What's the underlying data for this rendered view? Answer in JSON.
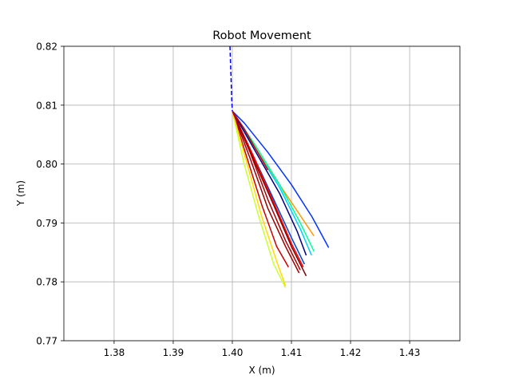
{
  "chart_data": {
    "type": "line",
    "title": "Robot Movement",
    "xlabel": "X (m)",
    "ylabel": "Y (m)",
    "xlim": [
      1.3715,
      1.4385
    ],
    "ylim": [
      0.77,
      0.82
    ],
    "x_ticks": [
      "1.38",
      "1.39",
      "1.40",
      "1.41",
      "1.42",
      "1.43"
    ],
    "x_tick_values": [
      1.38,
      1.39,
      1.4,
      1.41,
      1.42,
      1.43
    ],
    "y_ticks": [
      "0.77",
      "0.78",
      "0.79",
      "0.80",
      "0.81",
      "0.82"
    ],
    "y_tick_values": [
      0.77,
      0.78,
      0.79,
      0.8,
      0.81,
      0.82
    ],
    "grid": true,
    "series": [
      {
        "color": "#0000ff",
        "style": "dashed",
        "x": [
          1.3996,
          1.3997,
          1.3998,
          1.3999,
          1.4
        ],
        "y": [
          0.82,
          0.817,
          0.814,
          0.811,
          0.809
        ]
      },
      {
        "color": "#0033ff",
        "style": "solid",
        "x": [
          1.4,
          1.402,
          1.406,
          1.41,
          1.4135,
          1.4163
        ],
        "y": [
          0.809,
          0.807,
          0.802,
          0.7965,
          0.791,
          0.7858
        ]
      },
      {
        "color": "#ff9900",
        "style": "solid",
        "x": [
          1.4,
          1.403,
          1.407,
          1.411,
          1.4138
        ],
        "y": [
          0.809,
          0.804,
          0.798,
          0.792,
          0.7878
        ]
      },
      {
        "color": "#00ff99",
        "style": "solid",
        "x": [
          1.4,
          1.404,
          1.408,
          1.4115,
          1.4138
        ],
        "y": [
          0.809,
          0.803,
          0.7965,
          0.79,
          0.7852
        ]
      },
      {
        "color": "#00ccff",
        "style": "solid",
        "x": [
          1.4,
          1.404,
          1.408,
          1.4115,
          1.4134
        ],
        "y": [
          0.809,
          0.8025,
          0.796,
          0.789,
          0.7845
        ]
      },
      {
        "color": "#000080",
        "style": "solid",
        "x": [
          1.4,
          1.404,
          1.408,
          1.411,
          1.4125
        ],
        "y": [
          0.809,
          0.802,
          0.795,
          0.7885,
          0.7845
        ]
      },
      {
        "color": "#0044cc",
        "style": "solid",
        "x": [
          1.4,
          1.4035,
          1.407,
          1.41,
          1.4122
        ],
        "y": [
          0.809,
          0.8015,
          0.794,
          0.7875,
          0.783
        ]
      },
      {
        "color": "#ff0000",
        "style": "solid",
        "x": [
          1.4,
          1.4035,
          1.407,
          1.41,
          1.412
        ],
        "y": [
          0.809,
          0.8015,
          0.7935,
          0.7865,
          0.7825
        ]
      },
      {
        "color": "#800000",
        "style": "solid",
        "x": [
          1.4,
          1.4035,
          1.407,
          1.41,
          1.4125
        ],
        "y": [
          0.809,
          0.801,
          0.793,
          0.786,
          0.781
        ]
      },
      {
        "color": "#990000",
        "style": "solid",
        "x": [
          1.4,
          1.403,
          1.406,
          1.409,
          1.4113
        ],
        "y": [
          0.809,
          0.801,
          0.7925,
          0.786,
          0.7815
        ]
      },
      {
        "color": "#cc0000",
        "style": "solid",
        "x": [
          1.4,
          1.4025,
          1.405,
          1.4075,
          1.4095
        ],
        "y": [
          0.809,
          0.801,
          0.793,
          0.786,
          0.7825
        ]
      },
      {
        "color": "#ccff33",
        "style": "solid",
        "x": [
          1.4,
          1.402,
          1.4045,
          1.407,
          1.409
        ],
        "y": [
          0.809,
          0.8,
          0.791,
          0.783,
          0.779
        ]
      },
      {
        "color": "#ffdd00",
        "style": "solid",
        "x": [
          1.4,
          1.4025,
          1.405,
          1.4075,
          1.409
        ],
        "y": [
          0.809,
          0.8,
          0.791,
          0.7835,
          0.7793
        ]
      },
      {
        "color": "#aa0000",
        "style": "solid",
        "x": [
          1.4,
          1.403,
          1.406,
          1.409,
          1.4115
        ],
        "y": [
          0.809,
          0.802,
          0.794,
          0.787,
          0.782
        ]
      },
      {
        "color": "#cc0000",
        "style": "solid",
        "x": [
          1.4,
          1.402,
          1.404,
          1.406
        ],
        "y": [
          0.809,
          0.806,
          0.8025,
          0.799
        ]
      }
    ]
  }
}
